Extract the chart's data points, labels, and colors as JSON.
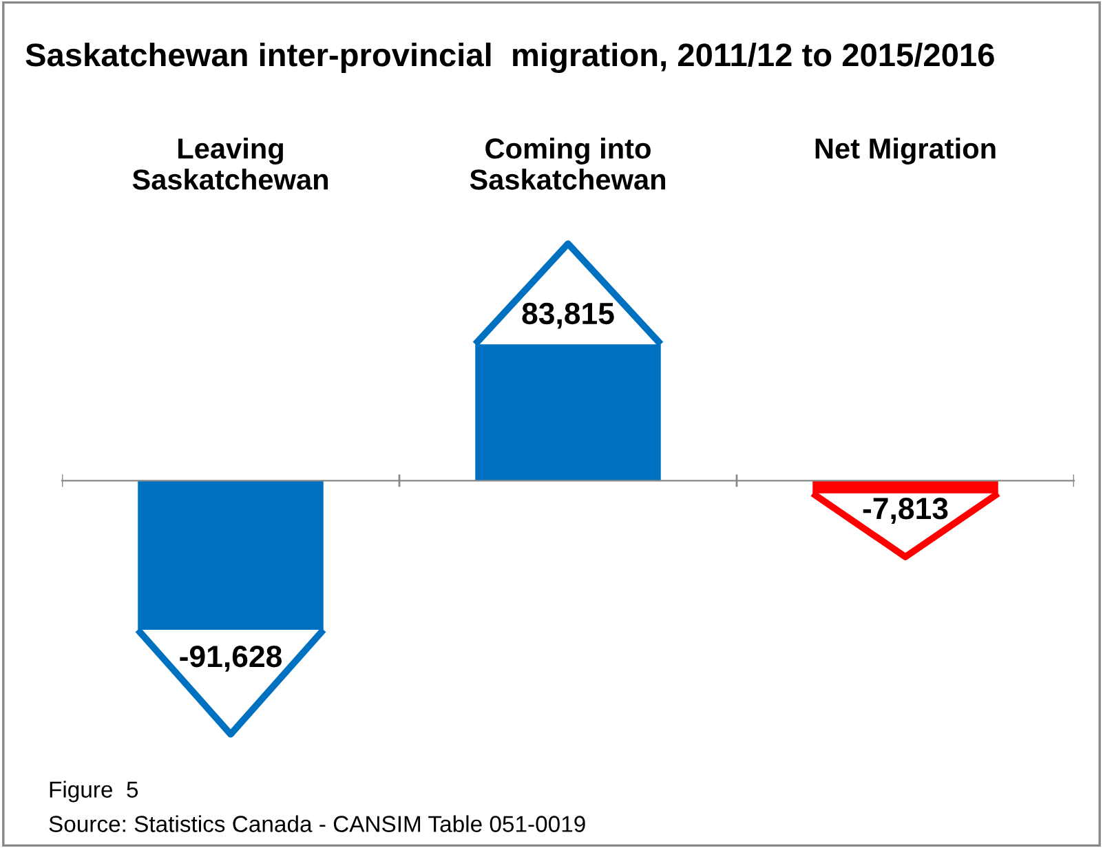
{
  "chart_data": {
    "type": "bar",
    "title": "Saskatchewan inter-provincial  migration, 2011/12 to 2015/2016",
    "categories": [
      "Leaving\nSaskatchewan",
      "Coming into\nSaskatchewan",
      "Net Migration"
    ],
    "values": [
      -91628,
      83815,
      -7813
    ],
    "value_labels": [
      "-91,628",
      "83,815",
      "-7,813"
    ],
    "colors": [
      "#0070c0",
      "#0070c0",
      "#ff0000"
    ],
    "annotations": [
      "Figure  5",
      "Source: Statistics Canada - CANSIM Table 051-0019"
    ]
  }
}
